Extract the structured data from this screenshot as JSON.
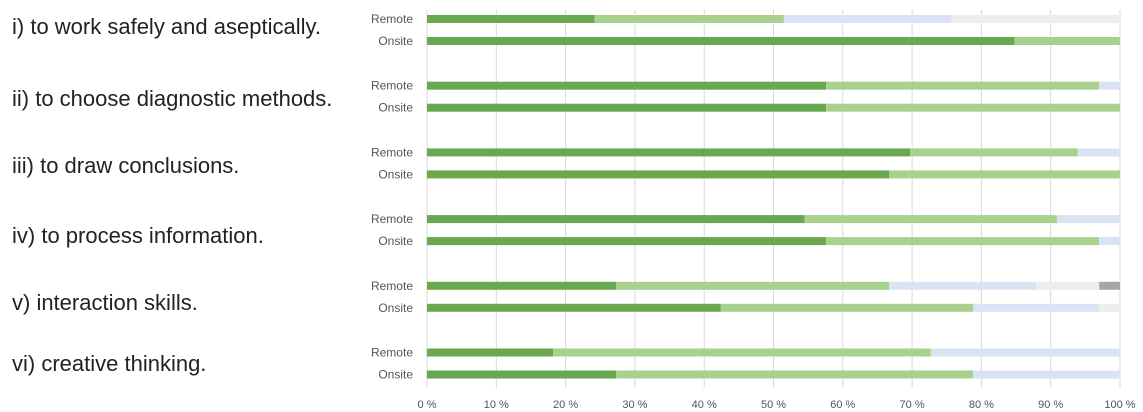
{
  "questions": [
    "i) to work safely and aseptically.",
    "ii) to choose diagnostic methods.",
    "iii) to draw conclusions.",
    "iv) to process information.",
    "v) interaction skills.",
    "vi) creative thinking."
  ],
  "chart_data": {
    "type": "bar",
    "orientation": "horizontal",
    "stacked": "percent",
    "xlim": [
      0,
      100
    ],
    "x_ticks": [
      "0 %",
      "10 %",
      "20 %",
      "30 %",
      "40 %",
      "50 %",
      "60 %",
      "70 %",
      "80 %",
      "90 %",
      "100 %"
    ],
    "grid": true,
    "legend": "none",
    "segment_colors": [
      "#6aa84f",
      "#a9d18e",
      "#dae3f3",
      "#ededed",
      "#a6a6a6"
    ],
    "groups": [
      {
        "question": "i) to work safely and aseptically.",
        "bars": [
          {
            "label": "Remote",
            "values": [
              24.2,
              27.3,
              24.2,
              24.3,
              0
            ]
          },
          {
            "label": "Onsite",
            "values": [
              84.8,
              15.2,
              0,
              0,
              0
            ]
          }
        ]
      },
      {
        "question": "ii) to choose diagnostic methods.",
        "bars": [
          {
            "label": "Remote",
            "values": [
              57.6,
              39.4,
              3.0,
              0,
              0
            ]
          },
          {
            "label": "Onsite",
            "values": [
              57.6,
              42.4,
              0,
              0,
              0
            ]
          }
        ]
      },
      {
        "question": "iii) to draw conclusions.",
        "bars": [
          {
            "label": "Remote",
            "values": [
              69.7,
              24.2,
              6.1,
              0,
              0
            ]
          },
          {
            "label": "Onsite",
            "values": [
              66.7,
              33.3,
              0,
              0,
              0
            ]
          }
        ]
      },
      {
        "question": "iv) to process information.",
        "bars": [
          {
            "label": "Remote",
            "values": [
              54.5,
              36.4,
              9.1,
              0,
              0
            ]
          },
          {
            "label": "Onsite",
            "values": [
              57.6,
              39.4,
              3.0,
              0,
              0
            ]
          }
        ]
      },
      {
        "question": "v) interaction skills.",
        "bars": [
          {
            "label": "Remote",
            "values": [
              27.3,
              39.4,
              21.2,
              9.1,
              3.0
            ]
          },
          {
            "label": "Onsite",
            "values": [
              42.4,
              36.4,
              18.2,
              3.0,
              0
            ]
          }
        ]
      },
      {
        "question": "vi) creative thinking.",
        "bars": [
          {
            "label": "Remote",
            "values": [
              18.2,
              54.5,
              27.3,
              0,
              0
            ]
          },
          {
            "label": "Onsite",
            "values": [
              27.3,
              51.5,
              21.2,
              0,
              0
            ]
          }
        ]
      }
    ]
  }
}
